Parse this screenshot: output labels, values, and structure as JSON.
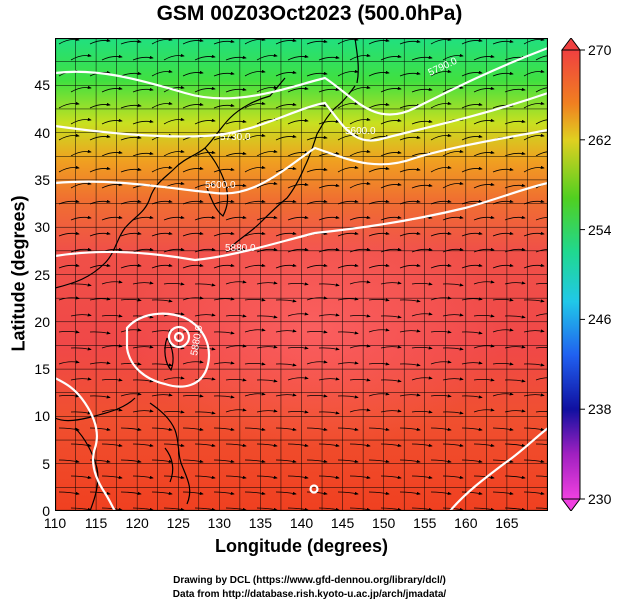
{
  "title": "GSM 00Z03Oct2023 (500.0hPa)",
  "xlabel": "Longitude (degrees)",
  "ylabel": "Latitude  (degrees)",
  "xticks": [
    "110",
    "115",
    "120",
    "125",
    "130",
    "135",
    "140",
    "145",
    "150",
    "155",
    "160",
    "165"
  ],
  "yticks": [
    "0",
    "5",
    "10",
    "15",
    "20",
    "25",
    "30",
    "35",
    "40",
    "45"
  ],
  "colorbar_ticks": [
    "270",
    "262",
    "254",
    "246",
    "238",
    "230"
  ],
  "contour_labels": [
    "5790.0",
    "5600.0",
    "5730.0",
    "5600.0",
    "5880.0",
    "5880.0"
  ],
  "credit_line1": "Drawing by DCL (https://www.gfd-dennou.org/library/dcl/)",
  "credit_line2": "Data from http://database.rish.kyoto-u.ac.jp/arch/jmadata/",
  "map_data": {
    "lon_range": [
      110,
      170
    ],
    "lat_range": [
      0,
      50
    ],
    "color_range": [
      230,
      270
    ],
    "colors": {
      "frame": "#000000",
      "contour": "#ffffff",
      "coast": "#000000"
    }
  }
}
